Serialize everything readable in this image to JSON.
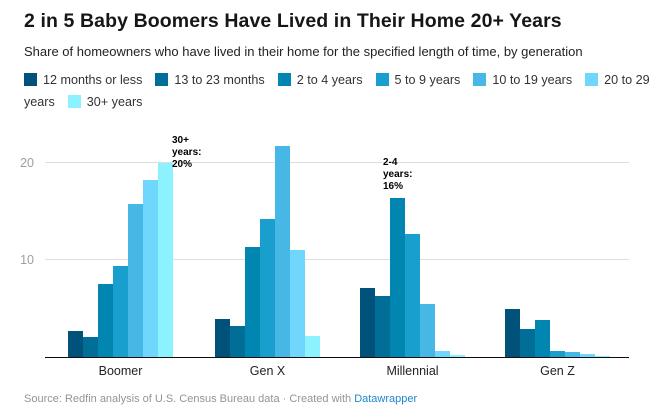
{
  "header": {
    "title": "2 in 5 Baby Boomers Have Lived in Their Home 20+ Years",
    "subtitle": "Share of homeowners who have lived in their home for the specified length of time, by generation"
  },
  "chart_data": {
    "type": "bar",
    "title": "2 in 5 Baby Boomers Have Lived in Their Home 20+ Years",
    "unit": "%",
    "categories": [
      "Boomer",
      "Gen X",
      "Millennial",
      "Gen Z"
    ],
    "series": [
      {
        "name": "12 months or less",
        "color": "#00527a",
        "values": [
          2.7,
          3.9,
          7.1,
          4.9
        ]
      },
      {
        "name": "13 to 23 months",
        "color": "#006e96",
        "values": [
          2.1,
          3.2,
          6.3,
          2.9
        ]
      },
      {
        "name": "2 to 4 years",
        "color": "#0086b1",
        "values": [
          7.5,
          11.3,
          16.4,
          3.8
        ]
      },
      {
        "name": "5 to 9 years",
        "color": "#189fce",
        "values": [
          9.4,
          14.2,
          12.7,
          0.6
        ]
      },
      {
        "name": "10 to 19 years",
        "color": "#47b8e5",
        "values": [
          15.7,
          21.7,
          5.5,
          0.5
        ]
      },
      {
        "name": "20 to 29 years",
        "color": "#6fd6fe",
        "values": [
          18.2,
          11.0,
          0.6,
          0.3
        ]
      },
      {
        "name": "30+ years",
        "color": "#8cf2ff",
        "values": [
          20.0,
          2.2,
          0.2,
          0.1
        ]
      }
    ],
    "xlabel": "",
    "ylabel": "",
    "yticks": [
      10,
      20
    ],
    "ytick_labels": [
      "10",
      "20"
    ],
    "ylim": [
      0,
      23.4
    ],
    "grid": "horizontal",
    "legend_position": "top",
    "annotations": [
      {
        "text": "30+ years: 20%",
        "lines": [
          "30+",
          "years:",
          "20%"
        ],
        "category": "Boomer",
        "series": "30+ years"
      },
      {
        "text": "2-4 years: 16%",
        "lines": [
          "2-4",
          "years:",
          "16%"
        ],
        "category": "Millennial",
        "series": "2 to 4 years"
      }
    ]
  },
  "footer": {
    "source": "Source: Redfin analysis of U.S. Census Bureau data",
    "separator": " · ",
    "created_with": "Created with ",
    "link_label": "Datawrapper"
  }
}
